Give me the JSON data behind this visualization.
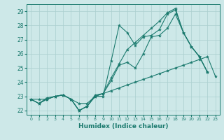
{
  "xlabel": "Humidex (Indice chaleur)",
  "xlim": [
    -0.5,
    23.5
  ],
  "ylim": [
    21.7,
    29.5
  ],
  "yticks": [
    22,
    23,
    24,
    25,
    26,
    27,
    28,
    29
  ],
  "xticks": [
    0,
    1,
    2,
    3,
    4,
    5,
    6,
    7,
    8,
    9,
    10,
    11,
    12,
    13,
    14,
    15,
    16,
    17,
    18,
    19,
    20,
    21,
    22,
    23
  ],
  "background_color": "#cde8e8",
  "grid_color": "#aacfcf",
  "line_color": "#1b7a6e",
  "series": [
    {
      "x": [
        0,
        1,
        2,
        3,
        4,
        5,
        6,
        7,
        8,
        9,
        10,
        11,
        12,
        13,
        14,
        15,
        16,
        17,
        18,
        19,
        20,
        21,
        22
      ],
      "y": [
        22.8,
        22.5,
        22.8,
        23.0,
        23.1,
        22.8,
        22.0,
        22.3,
        23.0,
        23.0,
        25.5,
        28.0,
        27.5,
        26.6,
        27.2,
        27.3,
        27.7,
        28.8,
        29.1,
        27.5,
        26.5,
        25.8,
        24.7
      ]
    },
    {
      "x": [
        0,
        1,
        2,
        3,
        4,
        5,
        6,
        7,
        8,
        9,
        10,
        11,
        12,
        13,
        14,
        15,
        16,
        17,
        18,
        19,
        20,
        21,
        22
      ],
      "y": [
        22.8,
        22.5,
        22.8,
        23.0,
        23.1,
        22.8,
        22.0,
        22.3,
        23.1,
        23.2,
        24.1,
        25.2,
        25.4,
        25.0,
        26.0,
        27.2,
        27.3,
        27.8,
        28.8,
        27.5,
        26.5,
        25.8,
        24.7
      ]
    },
    {
      "x": [
        0,
        1,
        2,
        3,
        4,
        5,
        6,
        7,
        8,
        9,
        10,
        11,
        12,
        13,
        14,
        15,
        16,
        17,
        18,
        19,
        20,
        21,
        22
      ],
      "y": [
        22.8,
        22.5,
        22.9,
        23.0,
        23.1,
        22.8,
        22.0,
        22.3,
        23.0,
        23.2,
        24.3,
        25.3,
        26.3,
        26.8,
        27.3,
        27.8,
        28.3,
        28.9,
        29.2,
        27.5,
        26.5,
        25.8,
        24.7
      ]
    },
    {
      "x": [
        0,
        1,
        2,
        3,
        4,
        5,
        6,
        7,
        8,
        9,
        10,
        11,
        12,
        13,
        14,
        15,
        16,
        17,
        18,
        19,
        20,
        21,
        22,
        23
      ],
      "y": [
        22.8,
        22.8,
        22.8,
        23.0,
        23.1,
        22.8,
        22.5,
        22.5,
        23.0,
        23.2,
        23.4,
        23.6,
        23.8,
        24.0,
        24.2,
        24.4,
        24.6,
        24.8,
        25.0,
        25.2,
        25.4,
        25.6,
        25.8,
        24.4
      ]
    }
  ]
}
